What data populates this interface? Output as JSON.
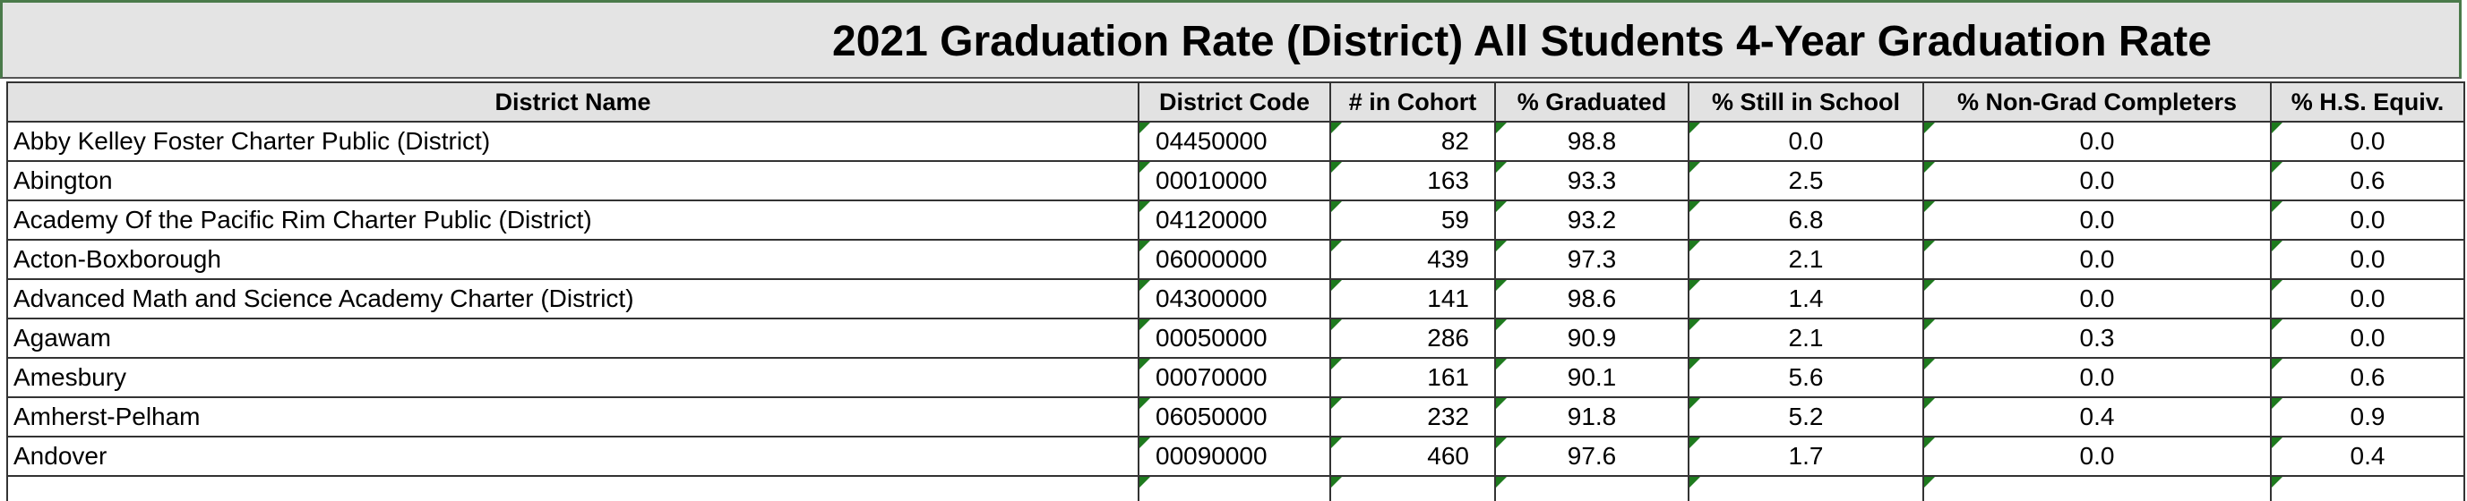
{
  "header": {
    "title": "2021 Graduation Rate (District) All Students 4-Year Graduation Rate"
  },
  "table": {
    "columns": [
      "District Name",
      "District Code",
      "# in Cohort",
      "% Graduated",
      "% Still in School",
      "% Non-Grad Completers",
      "% H.S. Equiv."
    ],
    "rows": [
      [
        "Abby Kelley Foster Charter Public (District)",
        "04450000",
        "82",
        "98.8",
        "0.0",
        "0.0",
        "0.0"
      ],
      [
        "Abington",
        "00010000",
        "163",
        "93.3",
        "2.5",
        "0.0",
        "0.6"
      ],
      [
        "Academy Of the Pacific Rim Charter Public (District)",
        "04120000",
        "59",
        "93.2",
        "6.8",
        "0.0",
        "0.0"
      ],
      [
        "Acton-Boxborough",
        "06000000",
        "439",
        "97.3",
        "2.1",
        "0.0",
        "0.0"
      ],
      [
        "Advanced Math and Science Academy Charter (District)",
        "04300000",
        "141",
        "98.6",
        "1.4",
        "0.0",
        "0.0"
      ],
      [
        "Agawam",
        "00050000",
        "286",
        "90.9",
        "2.1",
        "0.3",
        "0.0"
      ],
      [
        "Amesbury",
        "00070000",
        "161",
        "90.1",
        "5.6",
        "0.0",
        "0.6"
      ],
      [
        "Amherst-Pelham",
        "06050000",
        "232",
        "91.8",
        "5.2",
        "0.4",
        "0.9"
      ],
      [
        "Andover",
        "00090000",
        "460",
        "97.6",
        "1.7",
        "0.0",
        "0.4"
      ]
    ]
  }
}
